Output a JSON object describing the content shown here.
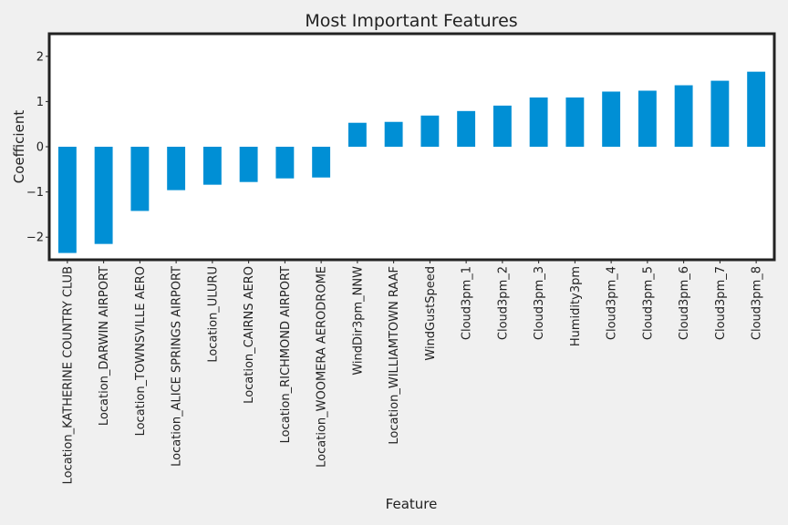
{
  "chart_data": {
    "type": "bar",
    "title": "Most Important Features",
    "xlabel": "Feature",
    "ylabel": "Coefficient",
    "ylim": [
      -2.5,
      2.5
    ],
    "yticks": [
      -2,
      -1,
      0,
      1,
      2
    ],
    "grid": false,
    "bar_color": "#008fd5",
    "categories": [
      "Location_KATHERINE COUNTRY CLUB",
      "Location_DARWIN AIRPORT",
      "Location_TOWNSVILLE AERO",
      "Location_ALICE SPRINGS AIRPORT",
      "Location_ULURU",
      "Location_CAIRNS AERO",
      "Location_RICHMOND AIRPORT",
      "Location_WOOMERA AERODROME",
      "WindDir3pm_NNW",
      "Location_WILLIAMTOWN RAAF",
      "WindGustSpeed",
      "Cloud3pm_1",
      "Cloud3pm_2",
      "Cloud3pm_3",
      "Humidity3pm",
      "Cloud3pm_4",
      "Cloud3pm_5",
      "Cloud3pm_6",
      "Cloud3pm_7",
      "Cloud3pm_8"
    ],
    "values": [
      -2.35,
      -2.15,
      -1.42,
      -0.96,
      -0.84,
      -0.78,
      -0.7,
      -0.68,
      0.53,
      0.55,
      0.69,
      0.79,
      0.91,
      1.09,
      1.09,
      1.22,
      1.24,
      1.36,
      1.46,
      1.66
    ]
  }
}
